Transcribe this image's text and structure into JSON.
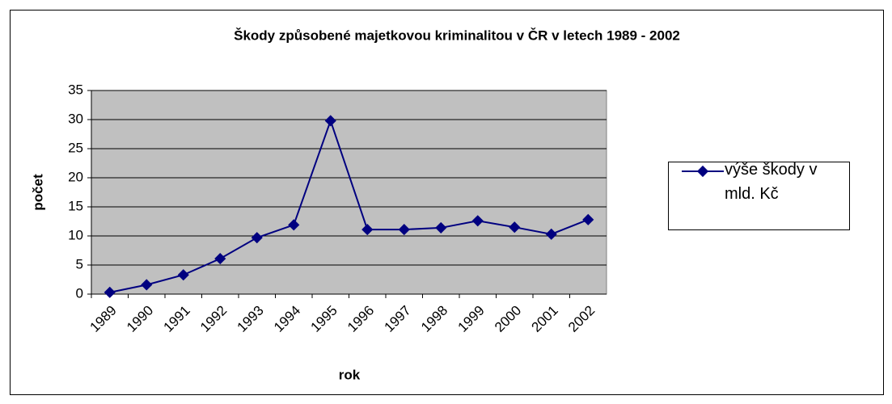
{
  "chart_data": {
    "type": "line",
    "title": "Škody způsobené majetkovou kriminalitou v ČR v letech 1989 - 2002",
    "x_label": "rok",
    "y_label": "počet",
    "categories": [
      "1989",
      "1990",
      "1991",
      "1992",
      "1993",
      "1994",
      "1995",
      "1996",
      "1997",
      "1998",
      "1999",
      "2000",
      "2001",
      "2002"
    ],
    "series": [
      {
        "name": "výše škody v mld. Kč",
        "color": "#000080",
        "values": [
          0.3,
          1.6,
          3.3,
          6.1,
          9.7,
          11.9,
          29.8,
          11.1,
          11.1,
          11.4,
          12.6,
          11.5,
          10.3,
          12.8
        ]
      }
    ],
    "ylim": [
      0,
      35
    ],
    "yticks": [
      0,
      5,
      10,
      15,
      20,
      25,
      30,
      35
    ],
    "grid": true,
    "legend": "right",
    "plot_background": "#c0c0c0"
  }
}
